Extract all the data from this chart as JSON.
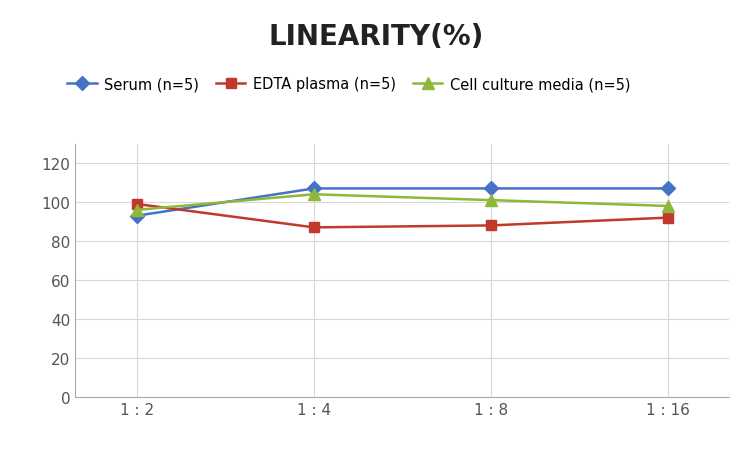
{
  "title": "LINEARITY(%)",
  "x_labels": [
    "1 : 2",
    "1 : 4",
    "1 : 8",
    "1 : 16"
  ],
  "x_positions": [
    0,
    1,
    2,
    3
  ],
  "series": [
    {
      "label": "Serum (n=5)",
      "values": [
        93,
        107,
        107,
        107
      ],
      "color": "#4472C4",
      "marker": "D",
      "markersize": 7,
      "linewidth": 1.8
    },
    {
      "label": "EDTA plasma (n=5)",
      "values": [
        99,
        87,
        88,
        92
      ],
      "color": "#C0392B",
      "marker": "s",
      "markersize": 7,
      "linewidth": 1.8
    },
    {
      "label": "Cell culture media (n=5)",
      "values": [
        96,
        104,
        101,
        98
      ],
      "color": "#8DB83A",
      "marker": "^",
      "markersize": 8,
      "linewidth": 1.8
    }
  ],
  "ylim": [
    0,
    130
  ],
  "yticks": [
    0,
    20,
    40,
    60,
    80,
    100,
    120
  ],
  "title_fontsize": 20,
  "legend_fontsize": 10.5,
  "tick_fontsize": 11,
  "background_color": "#ffffff",
  "grid_color": "#d8d8d8",
  "spine_color": "#aaaaaa"
}
